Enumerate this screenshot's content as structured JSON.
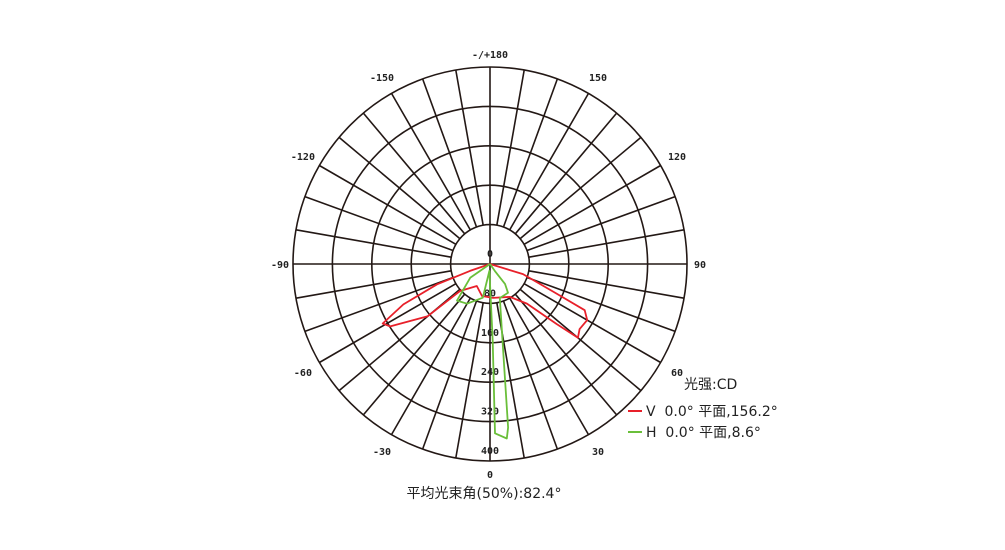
{
  "chart_data": {
    "type": "polar",
    "unit_label": "光强:CD",
    "radial_ticks": [
      "0",
      "80",
      "160",
      "240",
      "320",
      "400"
    ],
    "radial_range": [
      0,
      400
    ],
    "angle_ticks": [
      {
        "angle": 180,
        "label": "-/+180"
      },
      {
        "angle": 150,
        "label": "150"
      },
      {
        "angle": 120,
        "label": "120"
      },
      {
        "angle": 90,
        "label": "90"
      },
      {
        "angle": 60,
        "label": "60"
      },
      {
        "angle": 30,
        "label": "30"
      },
      {
        "angle": 0,
        "label": "0"
      },
      {
        "angle": -30,
        "label": "-30"
      },
      {
        "angle": -60,
        "label": "-60"
      },
      {
        "angle": -90,
        "label": "-90"
      },
      {
        "angle": -120,
        "label": "-120"
      },
      {
        "angle": -150,
        "label": "-150"
      }
    ],
    "grid": true,
    "angle_grid_step": 10,
    "series": [
      {
        "name": "V  0.0° 平面,156.2°",
        "color": "#e8202a",
        "points": [
          [
            0,
            0
          ],
          [
            -71,
            43
          ],
          [
            -69,
            115
          ],
          [
            -65,
            194
          ],
          [
            -61,
            249
          ],
          [
            -58,
            239
          ],
          [
            -50,
            165
          ],
          [
            -48,
            82
          ],
          [
            -31,
            52
          ],
          [
            -14,
            67
          ],
          [
            5,
            69
          ],
          [
            31,
            78
          ],
          [
            43,
            110
          ],
          [
            48,
            182
          ],
          [
            50,
            233
          ],
          [
            54,
            225
          ],
          [
            60,
            228
          ],
          [
            64,
            214
          ],
          [
            66,
            148
          ],
          [
            73,
            70
          ],
          [
            0,
            0
          ]
        ]
      },
      {
        "name": "H  0.0° 平面,8.6°",
        "color": "#6abf3a",
        "points": [
          [
            0,
            0
          ],
          [
            -55,
            49
          ],
          [
            -42,
            100
          ],
          [
            -30,
            93
          ],
          [
            -12,
            70
          ],
          [
            -5,
            14
          ],
          [
            2,
            156
          ],
          [
            1.7,
            344
          ],
          [
            5.5,
            356
          ],
          [
            6.3,
            334
          ],
          [
            16,
            72
          ],
          [
            32,
            69
          ],
          [
            37,
            51
          ],
          [
            35,
            17
          ],
          [
            0,
            0
          ]
        ]
      }
    ],
    "footer": "平均光束角(50%):82.4°"
  }
}
